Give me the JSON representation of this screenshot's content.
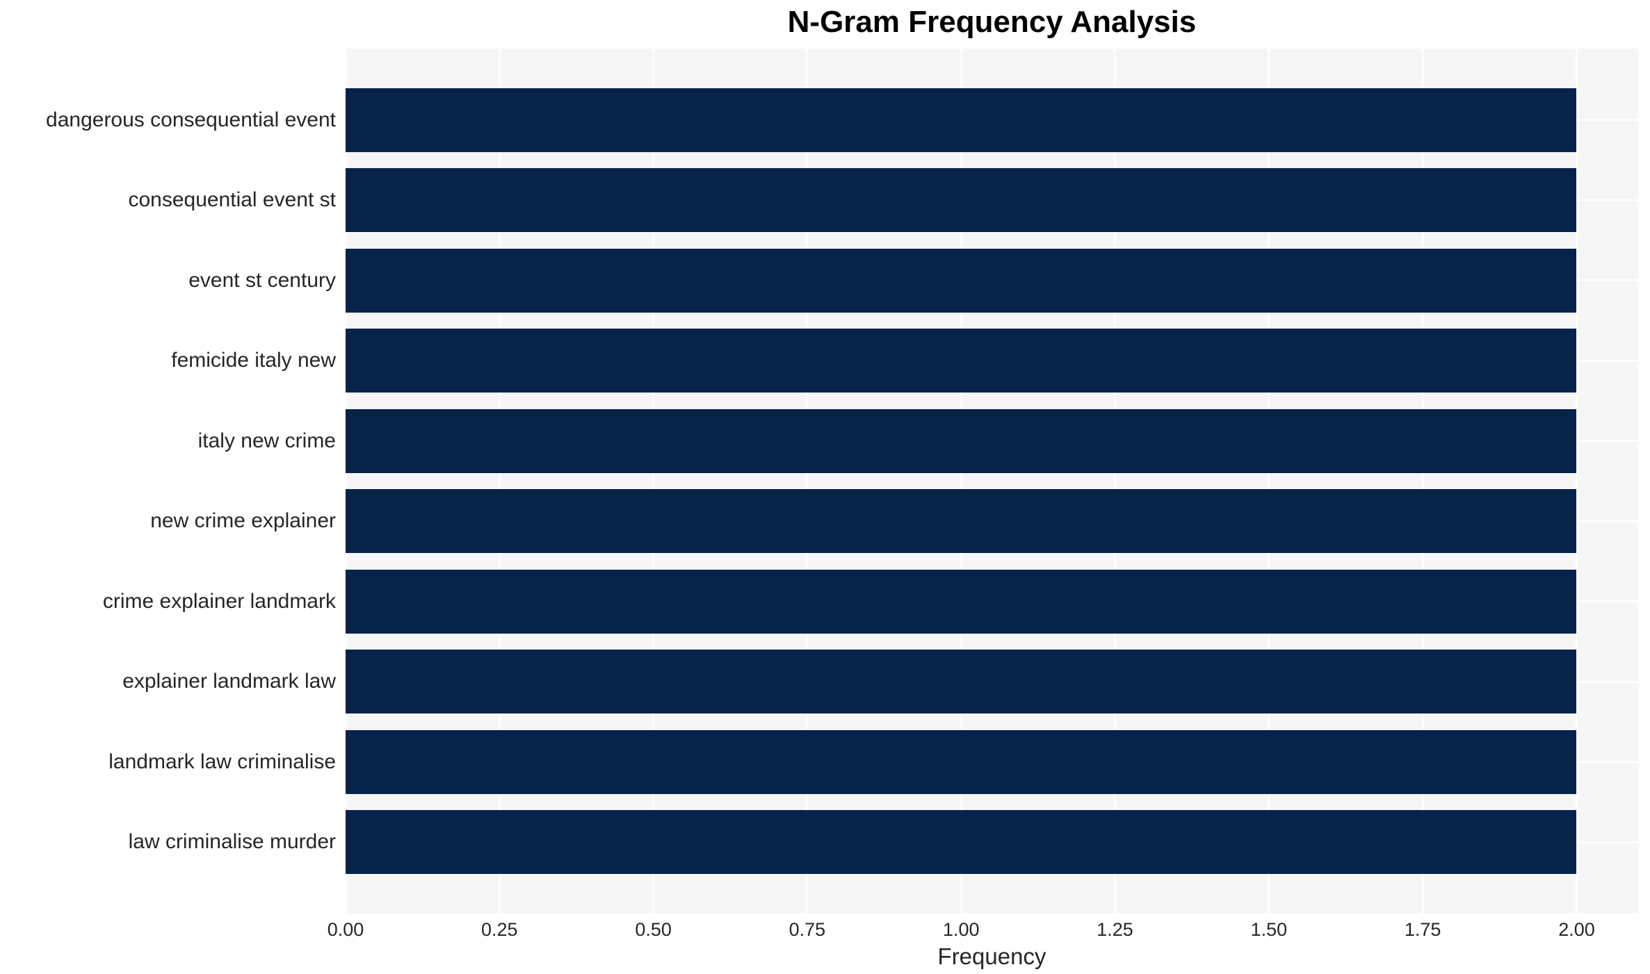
{
  "title": "N-Gram Frequency Analysis",
  "chart_data": {
    "type": "bar",
    "orientation": "horizontal",
    "title": "N-Gram Frequency Analysis",
    "categories": [
      "dangerous consequential event",
      "consequential event st",
      "event st century",
      "femicide italy new",
      "italy new crime",
      "new crime explainer",
      "crime explainer landmark",
      "explainer landmark law",
      "landmark law criminalise",
      "law criminalise murder"
    ],
    "values": [
      2,
      2,
      2,
      2,
      2,
      2,
      2,
      2,
      2,
      2
    ],
    "xlabel": "Frequency",
    "ylabel": "",
    "xlim": [
      0,
      2.1
    ],
    "xticks": [
      0,
      0.25,
      0.5,
      0.75,
      1,
      1.25,
      1.5,
      1.75,
      2
    ],
    "xtick_labels": [
      "0.00",
      "0.25",
      "0.50",
      "0.75",
      "1.00",
      "1.25",
      "1.50",
      "1.75",
      "2.00"
    ],
    "grid": true,
    "legend": false,
    "colors": {
      "bar": "#08234a",
      "plot_background": "#f6f6f7",
      "gridline": "#ffffff",
      "text": "#262626",
      "title_text": "#000000"
    }
  }
}
